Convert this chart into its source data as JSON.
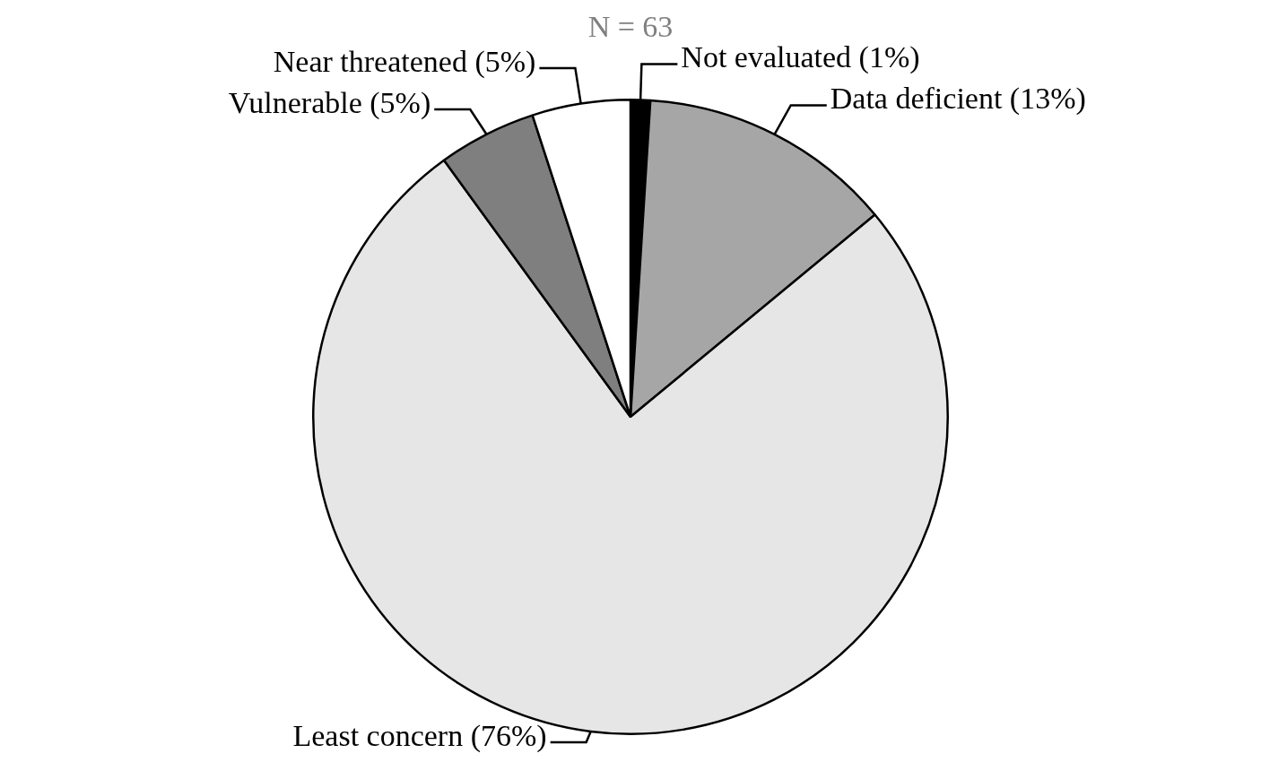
{
  "chart_data": {
    "type": "pie",
    "title": "N = 63",
    "categories": [
      "Not evaluated",
      "Data deficient",
      "Least concern",
      "Vulnerable",
      "Near threatened"
    ],
    "values": [
      1,
      13,
      76,
      5,
      5
    ],
    "value_labels": [
      "(1%)",
      "(13%)",
      "(76%)",
      "(5%)",
      "(5%)"
    ],
    "colors": [
      "#000000",
      "#a6a6a6",
      "#e6e6e6",
      "#7f7f7f",
      "#ffffff"
    ],
    "legend": false
  }
}
